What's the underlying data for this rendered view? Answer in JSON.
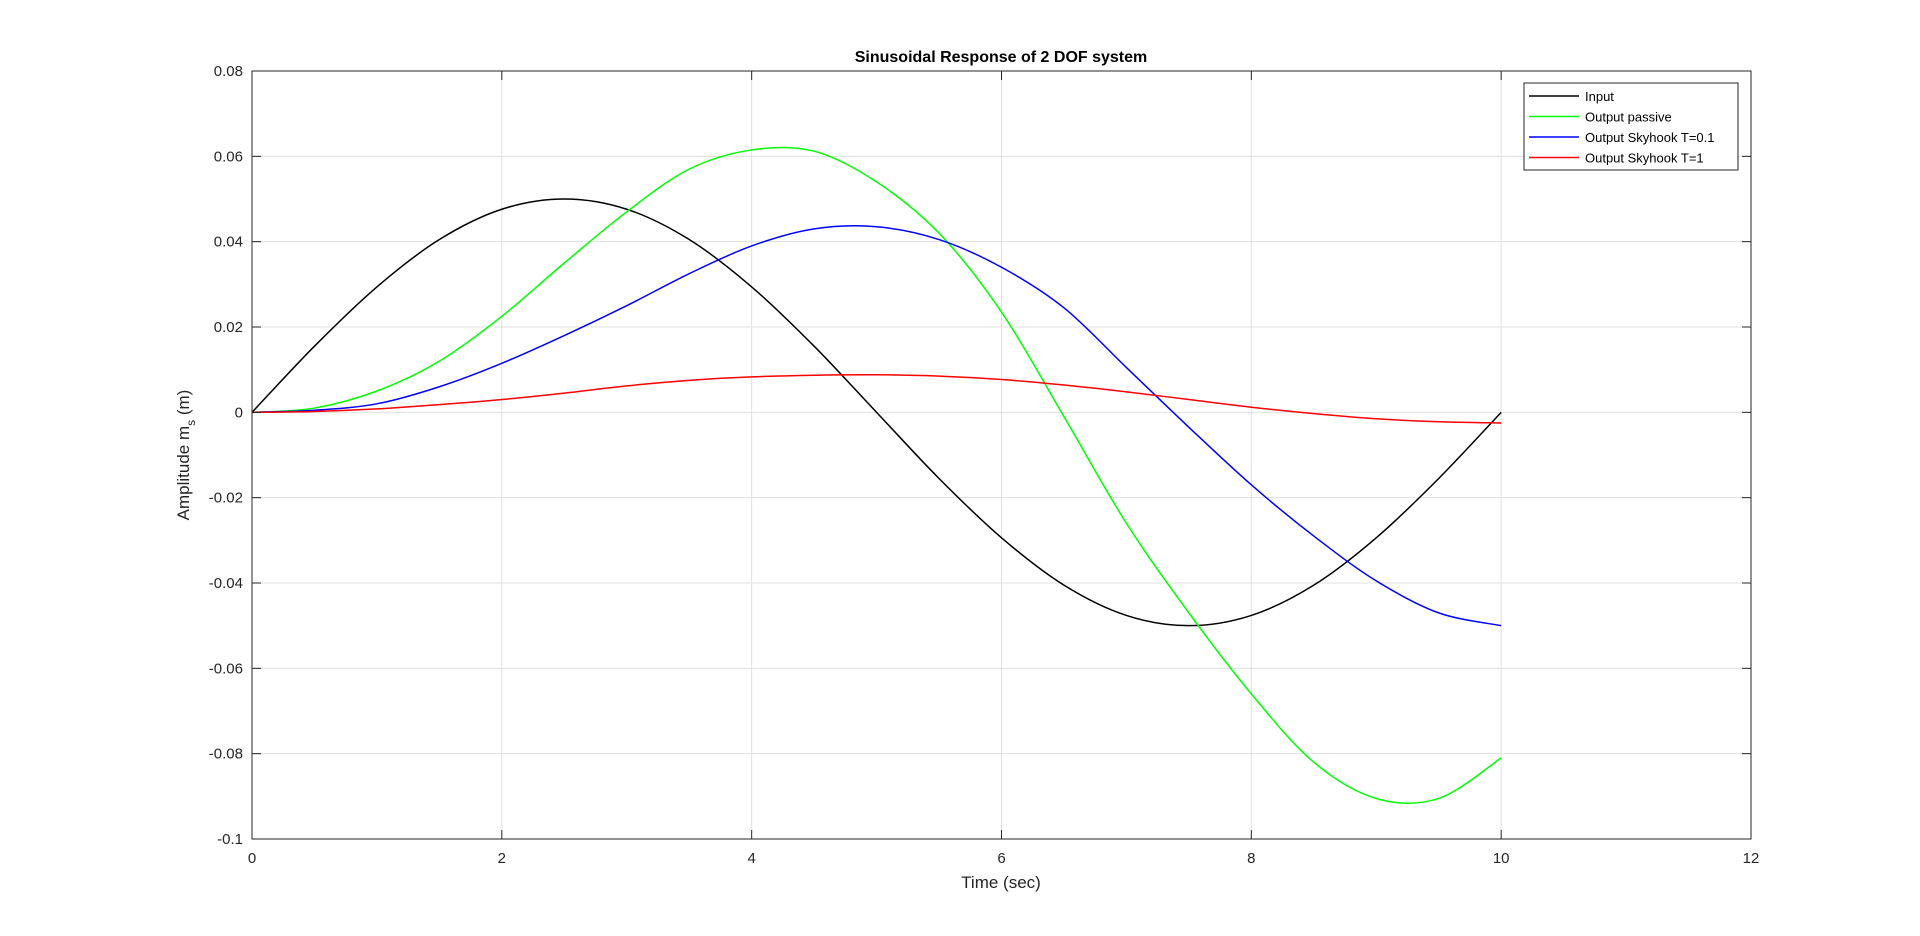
{
  "chart_data": {
    "type": "line",
    "title": "Sinusoidal Response of 2 DOF system",
    "xlabel": "Time (sec)",
    "ylabel_main": "Amplitude m",
    "ylabel_sub": "s",
    "ylabel_tail": " (m)",
    "xlim": [
      0,
      12
    ],
    "ylim": [
      -0.1,
      0.08
    ],
    "xticks": [
      0,
      2,
      4,
      6,
      8,
      10,
      12
    ],
    "yticks": [
      -0.1,
      -0.08,
      -0.06,
      -0.04,
      -0.02,
      0,
      0.02,
      0.04,
      0.06,
      0.08
    ],
    "xtick_labels": [
      "0",
      "2",
      "4",
      "6",
      "8",
      "10",
      "12"
    ],
    "ytick_labels": [
      "-0.1",
      "-0.08",
      "-0.06",
      "-0.04",
      "-0.02",
      "0",
      "0.02",
      "0.04",
      "0.06",
      "0.08"
    ],
    "grid": true,
    "legend_position": "top-right",
    "series": [
      {
        "name": "Input",
        "color": "#000000",
        "x": [
          0,
          0.5,
          1,
          1.5,
          2,
          2.5,
          3,
          3.5,
          4,
          4.5,
          5,
          5.5,
          6,
          6.5,
          7,
          7.5,
          8,
          8.5,
          9,
          9.5,
          10
        ],
        "y": [
          0,
          0.0155,
          0.0294,
          0.0405,
          0.0476,
          0.05,
          0.0476,
          0.0405,
          0.0294,
          0.0155,
          0,
          -0.0155,
          -0.0294,
          -0.0405,
          -0.0476,
          -0.05,
          -0.0476,
          -0.0405,
          -0.0294,
          -0.0155,
          0
        ]
      },
      {
        "name": "Output passive",
        "color": "#00ff00",
        "x": [
          0,
          0.5,
          1,
          1.5,
          2,
          2.5,
          3,
          3.5,
          4,
          4.5,
          5,
          5.5,
          6,
          6.5,
          7,
          7.5,
          8,
          8.5,
          9,
          9.5,
          10
        ],
        "y": [
          0,
          0.001,
          0.005,
          0.012,
          0.0225,
          0.035,
          0.047,
          0.057,
          0.0615,
          0.0612,
          0.054,
          0.042,
          0.0235,
          -0.001,
          -0.026,
          -0.047,
          -0.066,
          -0.082,
          -0.0905,
          -0.0905,
          -0.081
        ]
      },
      {
        "name": "Output Skyhook T=0.1",
        "color": "#0000ff",
        "x": [
          0,
          0.5,
          1,
          1.5,
          2,
          2.5,
          3,
          3.5,
          4,
          4.5,
          5,
          5.5,
          6,
          6.5,
          7,
          7.5,
          8,
          8.5,
          9,
          9.5,
          10
        ],
        "y": [
          0,
          0.0005,
          0.002,
          0.006,
          0.0115,
          0.018,
          0.025,
          0.0325,
          0.039,
          0.043,
          0.0435,
          0.0405,
          0.034,
          0.0245,
          0.0105,
          -0.0035,
          -0.017,
          -0.029,
          -0.0395,
          -0.047,
          -0.05
        ]
      },
      {
        "name": "Output Skyhook T=1",
        "color": "#ff0000",
        "x": [
          0,
          0.5,
          1,
          1.5,
          2,
          2.5,
          3,
          3.5,
          4,
          4.5,
          5,
          5.5,
          6,
          6.5,
          7,
          7.5,
          8,
          8.5,
          9,
          9.5,
          10
        ],
        "y": [
          0,
          0.0002,
          0.0008,
          0.0018,
          0.003,
          0.0045,
          0.0062,
          0.0075,
          0.0083,
          0.0087,
          0.0088,
          0.0085,
          0.0077,
          0.0064,
          0.0048,
          0.003,
          0.0012,
          -0.0003,
          -0.0015,
          -0.0022,
          -0.0025
        ]
      }
    ]
  }
}
